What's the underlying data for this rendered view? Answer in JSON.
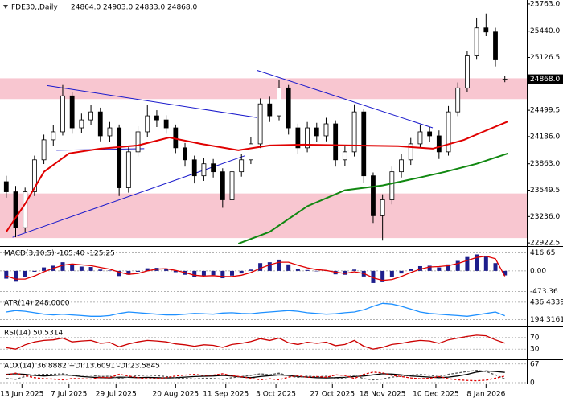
{
  "chart_data": {
    "type": "candlestick",
    "title": "FDE30,,Daily",
    "ohlc_labels": [
      "24864.0",
      "24903.0",
      "24833.0",
      "24868.0"
    ],
    "xlim": [
      -2,
      166
    ],
    "ylim": [
      22895,
      25810
    ],
    "yticks": [
      {
        "value": 25763,
        "label": "25763.0"
      },
      {
        "value": 25440,
        "label": "25440.0"
      },
      {
        "value": 25126.5,
        "label": "25126.5"
      },
      {
        "value": 24499.5,
        "label": "24499.5"
      },
      {
        "value": 24186,
        "label": "24186.0"
      },
      {
        "value": 23863,
        "label": "23863.0"
      },
      {
        "value": 23549.5,
        "label": "23549.5"
      },
      {
        "value": 23236,
        "label": "23236.0"
      },
      {
        "value": 22922.5,
        "label": "22922.5"
      }
    ],
    "xticks": [
      {
        "value": 5,
        "label": "13 Jun 2025"
      },
      {
        "value": 20,
        "label": "7 Jul 2025"
      },
      {
        "value": 35,
        "label": "29 Jul 2025"
      },
      {
        "value": 54,
        "label": "20 Aug 2025"
      },
      {
        "value": 70,
        "label": "11 Sep 2025"
      },
      {
        "value": 86,
        "label": "3 Oct 2025"
      },
      {
        "value": 104,
        "label": "27 Oct 2025"
      },
      {
        "value": 120,
        "label": "18 Nov 2025"
      },
      {
        "value": 137,
        "label": "10 Dec 2025"
      },
      {
        "value": 153,
        "label": "8 Jan 2026"
      }
    ],
    "last_price": {
      "value": 24868,
      "label": "24868.0"
    },
    "up_color": "#ffffff",
    "down_color": "#000000",
    "x": [
      0,
      3,
      6,
      9,
      12,
      15,
      18,
      21,
      24,
      27,
      30,
      33,
      36,
      39,
      42,
      45,
      48,
      51,
      54,
      57,
      60,
      63,
      66,
      69,
      72,
      75,
      78,
      81,
      84,
      87,
      90,
      93,
      96,
      99,
      102,
      105,
      108,
      111,
      114,
      117,
      120,
      123,
      126,
      129,
      132,
      135,
      138,
      141,
      144,
      147,
      150,
      153,
      156,
      159
    ],
    "open": [
      23650,
      23530,
      23103,
      23530,
      23910,
      24148,
      24243,
      24670,
      24290,
      24385,
      24480,
      24195,
      24290,
      23578,
      24005,
      24243,
      24433,
      24385,
      24290,
      24053,
      23910,
      23720,
      23863,
      23768,
      23435,
      23768,
      23910,
      24100,
      24575,
      24433,
      24765,
      24290,
      24053,
      24290,
      24195,
      24338,
      23910,
      24005,
      24480,
      23720,
      23245,
      23435,
      23768,
      23910,
      24100,
      24243,
      24195,
      24005,
      24480,
      24765,
      25145,
      25478,
      25430,
      24864
    ],
    "high": [
      23720,
      23600,
      23580,
      23960,
      24210,
      24320,
      24800,
      24720,
      24460,
      24560,
      24530,
      24360,
      24330,
      24060,
      24310,
      24560,
      24500,
      24440,
      24330,
      24110,
      23960,
      23930,
      23920,
      23810,
      23830,
      23980,
      24180,
      24640,
      24660,
      24860,
      24800,
      24340,
      24360,
      24350,
      24410,
      24380,
      24070,
      24570,
      24510,
      23760,
      23500,
      23830,
      23980,
      24170,
      24330,
      24300,
      24260,
      24550,
      24830,
      25200,
      25600,
      25650,
      25480,
      24903
    ],
    "low": [
      23460,
      22990,
      23050,
      23480,
      23860,
      24080,
      24200,
      24220,
      24230,
      24320,
      24130,
      24120,
      23480,
      23520,
      23950,
      24180,
      24300,
      24220,
      23990,
      23830,
      23630,
      23660,
      23700,
      23340,
      23380,
      23710,
      23860,
      24050,
      24360,
      24380,
      24210,
      23980,
      24000,
      24120,
      24130,
      23830,
      23840,
      23950,
      23640,
      23160,
      22950,
      23380,
      23700,
      23850,
      24050,
      24120,
      23920,
      23960,
      24430,
      24720,
      25100,
      25380,
      25020,
      24833
    ],
    "close": [
      23530,
      23103,
      23530,
      23910,
      24148,
      24243,
      24670,
      24290,
      24385,
      24480,
      24195,
      24290,
      23578,
      24005,
      24243,
      24433,
      24385,
      24290,
      24053,
      23910,
      23720,
      23863,
      23768,
      23435,
      23768,
      23910,
      24100,
      24575,
      24433,
      24765,
      24290,
      24053,
      24290,
      24195,
      24338,
      23910,
      24005,
      24480,
      23720,
      23245,
      23435,
      23768,
      23910,
      24100,
      24243,
      24195,
      24005,
      24480,
      24765,
      25145,
      25478,
      25430,
      25098,
      24868
    ],
    "zones": [
      {
        "from": 24632,
        "to": 24879
      },
      {
        "from": 22980,
        "to": 23510
      }
    ],
    "zone_color": "#f8c6d0",
    "moving_averages": [
      {
        "color": "#e00000",
        "x": [
          0,
          6,
          12,
          20,
          30,
          42,
          52,
          62,
          74,
          84,
          95,
          110,
          125,
          136,
          146,
          152,
          160
        ],
        "values": [
          23055,
          23387,
          23768,
          23986,
          24043,
          24081,
          24176,
          24100,
          24024,
          24081,
          24091,
          24081,
          24072,
          24043,
          24148,
          24243,
          24366
        ]
      },
      {
        "color": "#118811",
        "x": [
          74,
          84,
          96,
          108,
          120,
          132,
          140,
          150,
          160
        ],
        "values": [
          22913,
          23055,
          23359,
          23549,
          23606,
          23701,
          23768,
          23863,
          23986
        ]
      }
    ],
    "trendlines": [
      {
        "color": "#1a1acc",
        "x": [
          13,
          80
        ],
        "values": [
          24793,
          24413
        ]
      },
      {
        "color": "#1a1acc",
        "x": [
          16,
          44
        ],
        "values": [
          24024,
          24043
        ]
      },
      {
        "color": "#1a1acc",
        "x": [
          2,
          76
        ],
        "values": [
          22989,
          23958
        ]
      },
      {
        "color": "#1a1acc",
        "x": [
          80,
          136
        ],
        "values": [
          24974,
          24290
        ]
      }
    ],
    "indicators": [
      {
        "label": "MACD(3,10,5) -105.40 -125.25",
        "ylim": [
          -560,
          500
        ],
        "yticks": [
          416.65,
          {
            "value": 0,
            "label": "0.00"
          },
          -473.36
        ],
        "series": [
          {
            "type": "bar",
            "color": "#1e1e8c",
            "values": [
              -180,
              -250,
              -150,
              -20,
              80,
              120,
              200,
              150,
              100,
              90,
              30,
              10,
              -120,
              -90,
              -20,
              60,
              70,
              40,
              -30,
              -90,
              -150,
              -110,
              -100,
              -170,
              -110,
              -60,
              30,
              180,
              200,
              260,
              150,
              40,
              20,
              -10,
              10,
              -80,
              -90,
              30,
              -130,
              -280,
              -260,
              -150,
              -60,
              40,
              110,
              120,
              80,
              150,
              230,
              320,
              380,
              330,
              180,
              -105
            ]
          },
          {
            "type": "line",
            "color": "#e00000",
            "values": [
              -120,
              -190,
              -190,
              -120,
              -20,
              60,
              130,
              160,
              140,
              120,
              80,
              40,
              -30,
              -80,
              -60,
              0,
              40,
              50,
              10,
              -40,
              -100,
              -120,
              -110,
              -130,
              -130,
              -100,
              -40,
              60,
              140,
              200,
              200,
              130,
              70,
              30,
              10,
              -30,
              -60,
              -20,
              -60,
              -160,
              -220,
              -200,
              -130,
              -40,
              40,
              90,
              100,
              120,
              170,
              240,
              310,
              340,
              280,
              -125
            ]
          }
        ]
      },
      {
        "label": "ATR(14) 248.0000",
        "ylim": [
          120,
          480
        ],
        "yticks": [
          436.4339,
          194.3161
        ],
        "series": [
          {
            "type": "line",
            "color": "#1e90ff",
            "values": [
              300,
              320,
              310,
              290,
              270,
              260,
              270,
              260,
              250,
              240,
              240,
              250,
              280,
              300,
              290,
              280,
              270,
              260,
              260,
              270,
              280,
              275,
              270,
              285,
              290,
              280,
              275,
              290,
              300,
              310,
              320,
              310,
              290,
              280,
              270,
              275,
              290,
              300,
              330,
              380,
              420,
              410,
              380,
              340,
              300,
              280,
              270,
              260,
              250,
              240,
              260,
              280,
              300,
              248
            ]
          }
        ]
      },
      {
        "label": "RSI(14) 50.5314",
        "ylim": [
          0,
          100
        ],
        "yticks": [
          70,
          30
        ],
        "series": [
          {
            "type": "line",
            "color": "#cc0000",
            "values": [
              35,
              30,
              45,
              55,
              60,
              62,
              68,
              55,
              58,
              60,
              50,
              53,
              38,
              48,
              55,
              60,
              58,
              55,
              48,
              45,
              40,
              45,
              43,
              36,
              46,
              50,
              56,
              66,
              60,
              68,
              52,
              46,
              54,
              50,
              54,
              42,
              46,
              60,
              40,
              30,
              36,
              46,
              50,
              56,
              60,
              58,
              50,
              62,
              68,
              74,
              78,
              76,
              62,
              50.5314
            ]
          }
        ]
      },
      {
        "label": "ADX(14) 36.8882 +DI:13.6091 -DI:23.5845",
        "ylim": [
          0,
          75
        ],
        "yticks": [
          67,
          0
        ],
        "series": [
          {
            "type": "line",
            "color": "#000000",
            "values": [
              30,
              32,
              30,
              26,
              24,
              26,
              28,
              26,
              22,
              20,
              18,
              17,
              20,
              19,
              18,
              19,
              18,
              17,
              18,
              20,
              22,
              23,
              24,
              26,
              24,
              20,
              18,
              22,
              25,
              28,
              26,
              22,
              20,
              18,
              17,
              18,
              19,
              22,
              24,
              28,
              32,
              31,
              28,
              24,
              22,
              20,
              18,
              20,
              24,
              30,
              38,
              42,
              40,
              36.8882
            ]
          },
          {
            "type": "line",
            "dashed": true,
            "color": "#555555",
            "values": [
              15,
              12,
              22,
              28,
              30,
              30,
              32,
              26,
              27,
              27,
              22,
              23,
              15,
              20,
              25,
              27,
              25,
              22,
              17,
              15,
              13,
              16,
              15,
              12,
              18,
              22,
              26,
              32,
              28,
              34,
              24,
              19,
              23,
              21,
              23,
              15,
              17,
              27,
              14,
              10,
              13,
              20,
              23,
              27,
              29,
              27,
              21,
              30,
              35,
              40,
              44,
              40,
              28,
              13.6091
            ]
          },
          {
            "type": "line",
            "dashed": true,
            "color": "#dd0000",
            "values": [
              28,
              34,
              25,
              18,
              14,
              13,
              10,
              15,
              14,
              13,
              19,
              18,
              30,
              24,
              18,
              14,
              15,
              18,
              24,
              27,
              30,
              26,
              27,
              32,
              25,
              21,
              16,
              10,
              14,
              10,
              20,
              25,
              19,
              22,
              19,
              28,
              26,
              15,
              30,
              38,
              35,
              26,
              22,
              17,
              14,
              16,
              22,
              14,
              10,
              8,
              7,
              9,
              16,
              23.5845
            ]
          }
        ]
      }
    ]
  }
}
